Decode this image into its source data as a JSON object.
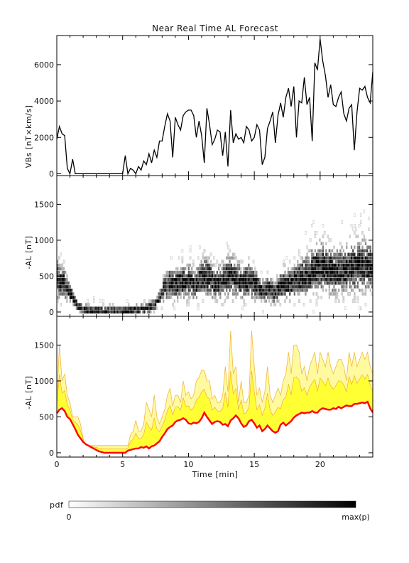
{
  "title": "Near Real Time AL Forecast",
  "chart_data": [
    {
      "type": "line",
      "ylabel": "VBs [nT×km/s]",
      "xlim": [
        0,
        24
      ],
      "ylim": [
        -100,
        7600
      ],
      "yticks": [
        0,
        2000,
        4000,
        6000
      ],
      "series": [
        {
          "x": [
            0,
            0.2,
            0.4,
            0.6,
            0.8,
            1.0,
            1.2,
            1.4,
            1.6,
            1.8,
            2.0,
            3.0,
            4.0,
            5.0,
            5.2,
            5.4,
            5.6,
            5.8,
            6.0,
            6.2,
            6.4,
            6.6,
            6.8,
            7.0,
            7.2,
            7.4,
            7.6,
            7.8,
            8.0,
            8.2,
            8.4,
            8.6,
            8.8,
            9.0,
            9.2,
            9.4,
            9.6,
            9.8,
            10.0,
            10.2,
            10.4,
            10.6,
            10.8,
            11.0,
            11.2,
            11.4,
            11.6,
            11.8,
            12.0,
            12.2,
            12.4,
            12.6,
            12.8,
            13.0,
            13.2,
            13.4,
            13.6,
            13.8,
            14.0,
            14.2,
            14.4,
            14.6,
            14.8,
            15.0,
            15.2,
            15.4,
            15.6,
            15.8,
            16.0,
            16.2,
            16.4,
            16.6,
            16.8,
            17.0,
            17.2,
            17.4,
            17.6,
            17.8,
            18.0,
            18.2,
            18.4,
            18.6,
            18.8,
            19.0,
            19.2,
            19.4,
            19.6,
            19.8,
            20.0,
            20.2,
            20.4,
            20.6,
            20.8,
            21.0,
            21.2,
            21.4,
            21.6,
            21.8,
            22.0,
            22.2,
            22.4,
            22.6,
            22.8,
            23.0,
            23.2,
            23.4,
            23.6,
            23.8,
            24.0
          ],
          "y": [
            1900,
            2600,
            2200,
            2100,
            300,
            0,
            800,
            0,
            0,
            0,
            0,
            0,
            0,
            0,
            1000,
            0,
            300,
            200,
            0,
            400,
            200,
            700,
            500,
            1100,
            600,
            1300,
            900,
            1800,
            1800,
            2600,
            3300,
            2900,
            900,
            3100,
            2700,
            2400,
            3200,
            3400,
            3500,
            3500,
            3200,
            2000,
            2900,
            2100,
            600,
            3600,
            2700,
            1600,
            1900,
            2400,
            2300,
            1000,
            2300,
            400,
            3500,
            1700,
            2200,
            1900,
            2000,
            1700,
            2600,
            2400,
            1800,
            2000,
            2700,
            2400,
            500,
            900,
            2500,
            2900,
            3400,
            1700,
            3200,
            3900,
            3100,
            4200,
            4700,
            3700,
            4800,
            2000,
            4000,
            3900,
            5300,
            3800,
            4200,
            1800,
            6100,
            5700,
            7400,
            6200,
            5400,
            4200,
            4900,
            3800,
            3700,
            4200,
            4500,
            3300,
            2900,
            3600,
            3800,
            1300,
            3400,
            4700,
            4600,
            4800,
            4200,
            3900,
            5600
          ]
        }
      ]
    },
    {
      "type": "heatmap",
      "ylabel": "-AL [nT]",
      "xlim": [
        0,
        24
      ],
      "ylim": [
        -60,
        1900
      ],
      "yticks": [
        0,
        500,
        1000,
        1500
      ],
      "median": {
        "x": [
          0,
          0.5,
          1,
          1.5,
          2,
          2.5,
          3,
          3.5,
          4,
          4.5,
          5,
          5.5,
          6,
          6.5,
          7,
          7.5,
          8,
          8.5,
          9,
          9.5,
          10,
          10.5,
          11,
          11.5,
          12,
          12.5,
          13,
          13.5,
          14,
          14.5,
          15,
          15.5,
          16,
          16.5,
          17,
          17.5,
          18,
          18.5,
          19,
          19.5,
          20,
          20.5,
          21,
          21.5,
          22,
          22.5,
          23,
          23.5,
          24
        ],
        "y": [
          450,
          400,
          250,
          100,
          30,
          10,
          5,
          5,
          5,
          5,
          5,
          10,
          30,
          40,
          60,
          120,
          300,
          400,
          380,
          420,
          430,
          380,
          500,
          480,
          380,
          420,
          520,
          480,
          400,
          450,
          380,
          300,
          320,
          260,
          380,
          380,
          420,
          480,
          520,
          600,
          620,
          600,
          560,
          580,
          600,
          620,
          650,
          640,
          620
        ]
      },
      "pdf_colorbar": {
        "label": "pdf",
        "min_label": "0",
        "max_label": "max(p)"
      }
    },
    {
      "type": "area",
      "ylabel": "-AL [nT]",
      "xlabel": "Time [min]",
      "xlim": [
        0,
        24
      ],
      "ylim": [
        -60,
        1900
      ],
      "yticks": [
        0,
        500,
        1000,
        1500
      ],
      "xticks": [
        0,
        5,
        10,
        15,
        20
      ],
      "x": [
        0,
        0.2,
        0.4,
        0.6,
        0.8,
        1.0,
        1.2,
        1.4,
        1.6,
        1.8,
        2.0,
        2.2,
        2.4,
        2.6,
        2.8,
        3.0,
        3.2,
        3.4,
        3.6,
        3.8,
        4.0,
        4.2,
        4.4,
        4.6,
        4.8,
        5.0,
        5.2,
        5.4,
        5.6,
        5.8,
        6.0,
        6.2,
        6.4,
        6.6,
        6.8,
        7.0,
        7.2,
        7.4,
        7.6,
        7.8,
        8.0,
        8.2,
        8.4,
        8.6,
        8.8,
        9.0,
        9.2,
        9.4,
        9.6,
        9.8,
        10.0,
        10.2,
        10.4,
        10.6,
        10.8,
        11.0,
        11.2,
        11.4,
        11.6,
        11.8,
        12.0,
        12.2,
        12.4,
        12.6,
        12.8,
        13.0,
        13.2,
        13.4,
        13.6,
        13.8,
        14.0,
        14.2,
        14.4,
        14.6,
        14.8,
        15.0,
        15.2,
        15.4,
        15.6,
        15.8,
        16.0,
        16.2,
        16.4,
        16.6,
        16.8,
        17.0,
        17.2,
        17.4,
        17.6,
        17.8,
        18.0,
        18.2,
        18.4,
        18.6,
        18.8,
        19.0,
        19.2,
        19.4,
        19.6,
        19.8,
        20.0,
        20.2,
        20.4,
        20.6,
        20.8,
        21.0,
        21.2,
        21.4,
        21.6,
        21.8,
        22.0,
        22.2,
        22.4,
        22.6,
        22.8,
        23.0,
        23.2,
        23.4,
        23.6,
        23.8,
        24.0
      ],
      "series": [
        {
          "name": "median",
          "color": "#ff0000",
          "y": [
            550,
            600,
            620,
            580,
            500,
            470,
            400,
            330,
            250,
            200,
            150,
            120,
            100,
            80,
            60,
            40,
            20,
            10,
            0,
            0,
            0,
            0,
            0,
            0,
            0,
            0,
            0,
            30,
            40,
            50,
            60,
            60,
            80,
            70,
            90,
            60,
            90,
            100,
            130,
            160,
            220,
            270,
            330,
            360,
            380,
            430,
            450,
            460,
            480,
            460,
            410,
            400,
            420,
            410,
            430,
            480,
            560,
            500,
            450,
            400,
            430,
            440,
            430,
            390,
            400,
            370,
            450,
            480,
            520,
            480,
            410,
            360,
            380,
            440,
            460,
            410,
            350,
            380,
            300,
            330,
            380,
            340,
            300,
            280,
            300,
            390,
            420,
            380,
            410,
            440,
            490,
            520,
            540,
            560,
            550,
            560,
            560,
            580,
            560,
            560,
            600,
            620,
            610,
            600,
            600,
            620,
            610,
            640,
            620,
            640,
            660,
            650,
            650,
            680,
            680,
            690,
            700,
            690,
            710,
            620,
            560
          ]
        },
        {
          "name": "upper",
          "color": "#ffff33",
          "y": [
            750,
            1500,
            1000,
            1100,
            800,
            700,
            500,
            500,
            500,
            400,
            200,
            100,
            100,
            100,
            100,
            100,
            100,
            100,
            100,
            100,
            100,
            100,
            100,
            100,
            100,
            100,
            100,
            100,
            250,
            300,
            450,
            300,
            300,
            400,
            700,
            600,
            500,
            800,
            500,
            400,
            500,
            600,
            800,
            900,
            650,
            800,
            800,
            700,
            1000,
            800,
            850,
            750,
            800,
            1000,
            1050,
            1150,
            1150,
            1000,
            1000,
            750,
            800,
            700,
            700,
            800,
            1200,
            850,
            1700,
            1100,
            1200,
            700,
            1000,
            700,
            700,
            800,
            1700,
            1200,
            800,
            900,
            700,
            850,
            1200,
            800,
            700,
            800,
            900,
            800,
            1000,
            1100,
            1400,
            1100,
            1500,
            1500,
            1400,
            1100,
            1200,
            1000,
            1200,
            1300,
            1400,
            1100,
            1400,
            1300,
            1200,
            1400,
            1200,
            1100,
            1200,
            1300,
            1300,
            1200,
            1000,
            1400,
            1200,
            1400,
            1200,
            1300,
            1400,
            1300,
            1400,
            1200,
            1100
          ]
        }
      ]
    }
  ]
}
